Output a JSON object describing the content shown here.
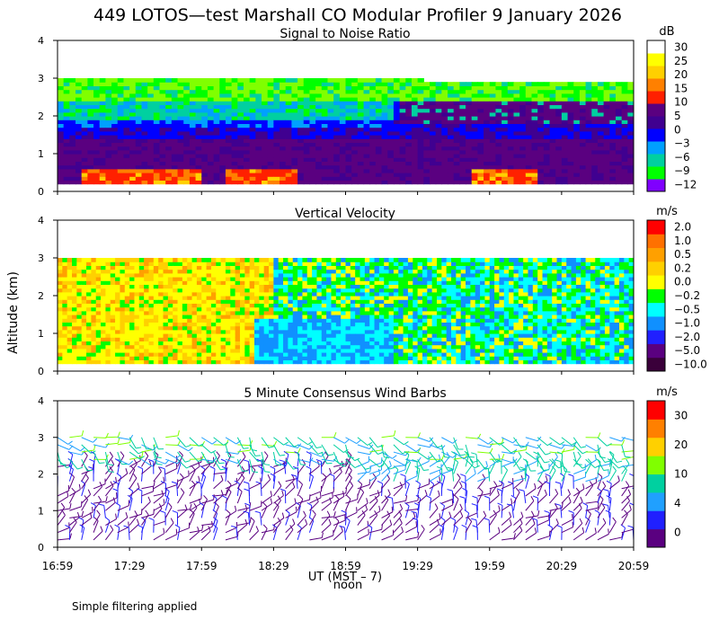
{
  "title": "449 LOTOS—test Marshall CO Modular Profiler  9 January 2026",
  "y_axis_label": "Altitude (km)",
  "x_axis_label": "UT  (MST – 7)",
  "noon_label": "noon",
  "footnote": "Simple filtering applied",
  "x_tick_labels": [
    "16:59",
    "17:29",
    "17:59",
    "18:29",
    "18:59",
    "19:29",
    "19:59",
    "20:29",
    "20:59"
  ],
  "y_tick_labels": [
    "0",
    "1",
    "2",
    "3",
    "4"
  ],
  "colors": {
    "snr_scale": [
      "#8000ff",
      "#00ff00",
      "#00d0a0",
      "#00a0ff",
      "#0000ff",
      "#400090",
      "#5a0080",
      "#ff2000",
      "#ff8000",
      "#ffd000",
      "#ffff00",
      "#ffffff"
    ],
    "velocity_scale": [
      "#3a003a",
      "#5a0080",
      "#2020ff",
      "#1090ff",
      "#00ffff",
      "#00ff00",
      "#ffff00",
      "#ffd000",
      "#ffa000",
      "#ff7000",
      "#ff0000"
    ],
    "wind_scale": [
      "#5a0080",
      "#2020ff",
      "#20a0ff",
      "#00d0a0",
      "#80ff00",
      "#ffd000",
      "#ff8000",
      "#ff0000"
    ]
  },
  "chart_data": [
    {
      "type": "heatmap",
      "title": "Signal to Noise Ratio",
      "colorbar_unit": "dB",
      "colorbar_tick_labels": [
        "30",
        "25",
        "20",
        "15",
        "10",
        "5",
        "0",
        "−3",
        "−6",
        "−9",
        "−12"
      ],
      "ylim": [
        0,
        4
      ],
      "xlim": [
        "16:59",
        "20:59"
      ],
      "valid_height_range_km": [
        0.2,
        3.0
      ],
      "description_of_layers": [
        {
          "altitude_km": [
            0.2,
            0.6
          ],
          "dB_approx": 10
        },
        {
          "altitude_km": [
            0.6,
            1.6
          ],
          "dB_approx": 3
        },
        {
          "altitude_km": [
            1.6,
            2.2
          ],
          "dB_approx": -3
        },
        {
          "altitude_km": [
            2.2,
            2.9
          ],
          "dB_approx": -9
        }
      ]
    },
    {
      "type": "heatmap",
      "title": "Vertical Velocity",
      "colorbar_unit": "m/s",
      "colorbar_tick_labels": [
        "2.0",
        "1.0",
        "0.5",
        "0.2",
        "0.0",
        "−0.2",
        "−0.5",
        "−1.0",
        "−2.0",
        "−5.0",
        "−10.0"
      ],
      "ylim": [
        0,
        4
      ],
      "xlim": [
        "16:59",
        "20:59"
      ],
      "valid_height_range_km": [
        0.2,
        3.0
      ]
    },
    {
      "type": "scatter",
      "title": "5 Minute Consensus Wind Barbs",
      "colorbar_unit": "m/s",
      "colorbar_tick_labels": [
        "30",
        "20",
        "10",
        "4",
        "0"
      ],
      "ylim": [
        0,
        4
      ],
      "xlim": [
        "16:59",
        "20:59"
      ],
      "barb_spacing_minutes": 5,
      "heights_km": [
        0.2,
        0.4,
        0.6,
        0.8,
        1.0,
        1.2,
        1.4,
        1.6,
        1.8,
        2.0,
        2.2,
        2.4,
        2.6,
        2.8,
        3.0
      ]
    }
  ]
}
